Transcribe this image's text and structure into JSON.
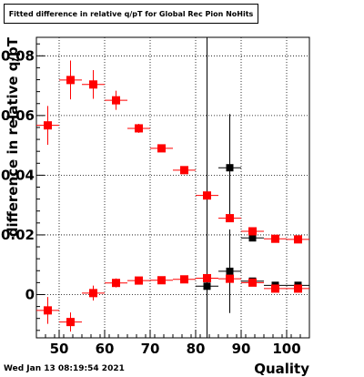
{
  "title": "Fitted difference in relative q/pT for Global Rec Pion NoHits",
  "timestamp": "Wed Jan 13 08:19:54 2021",
  "chart_data": {
    "type": "scatter",
    "title": "Fitted difference in relative q/pT for Global Rec Pion NoHits",
    "xlabel": "Quality",
    "ylabel": "difference in relative q/pT",
    "xlim": [
      45,
      105
    ],
    "ylim": [
      -0.0145,
      0.0862
    ],
    "x_ticks": [
      "50",
      "60",
      "70",
      "80",
      "90",
      "100"
    ],
    "y_ticks": [
      "0",
      "0.02",
      "0.04",
      "0.06",
      "0.08"
    ],
    "grid": true,
    "series": [
      {
        "color": "#000000",
        "points": [
          {
            "x": 82.5,
            "y": 0.0028,
            "xerr": 2.5,
            "yerr": 0.25
          },
          {
            "x": 87.5,
            "y": 0.0425,
            "xerr": 2.5,
            "yerr": 0.018
          },
          {
            "x": 87.5,
            "y": 0.0078,
            "xerr": 2.5,
            "yerr": 0.014
          },
          {
            "x": 92.5,
            "y": 0.019,
            "xerr": 2.5,
            "yerr": 0.0008
          },
          {
            "x": 92.5,
            "y": 0.0045,
            "xerr": 2.5,
            "yerr": 0.001
          },
          {
            "x": 97.5,
            "y": 0.0031,
            "xerr": 2.5,
            "yerr": 0.0008
          },
          {
            "x": 102.5,
            "y": 0.0031,
            "xerr": 2.5,
            "yerr": 0.0006
          }
        ]
      },
      {
        "color": "#ff0000",
        "points": [
          {
            "x": 47.5,
            "y": 0.0567,
            "xerr": 2.5,
            "yerr": 0.0065
          },
          {
            "x": 52.5,
            "y": 0.0719,
            "xerr": 2.5,
            "yerr": 0.0065
          },
          {
            "x": 57.5,
            "y": 0.0704,
            "xerr": 2.5,
            "yerr": 0.0048
          },
          {
            "x": 62.5,
            "y": 0.0651,
            "xerr": 2.5,
            "yerr": 0.0032
          },
          {
            "x": 67.5,
            "y": 0.0557,
            "xerr": 2.5,
            "yerr": 0.0015
          },
          {
            "x": 72.5,
            "y": 0.049,
            "xerr": 2.5,
            "yerr": 0.0008
          },
          {
            "x": 77.5,
            "y": 0.0417,
            "xerr": 2.5,
            "yerr": 0.0008
          },
          {
            "x": 82.5,
            "y": 0.0332,
            "xerr": 2.5,
            "yerr": 0.0008
          },
          {
            "x": 87.5,
            "y": 0.0256,
            "xerr": 2.5,
            "yerr": 0.0006
          },
          {
            "x": 92.5,
            "y": 0.0212,
            "xerr": 2.5,
            "yerr": 0.0006
          },
          {
            "x": 97.5,
            "y": 0.0187,
            "xerr": 2.5,
            "yerr": 0.0006
          },
          {
            "x": 102.5,
            "y": 0.0185,
            "xerr": 2.5,
            "yerr": 0.0006
          },
          {
            "x": 47.5,
            "y": -0.0053,
            "xerr": 2.5,
            "yerr": 0.0045
          },
          {
            "x": 52.5,
            "y": -0.0092,
            "xerr": 2.5,
            "yerr": 0.0032
          },
          {
            "x": 57.5,
            "y": 0.0005,
            "xerr": 2.5,
            "yerr": 0.0025
          },
          {
            "x": 62.5,
            "y": 0.0039,
            "xerr": 2.5,
            "yerr": 0.0015
          },
          {
            "x": 67.5,
            "y": 0.0047,
            "xerr": 2.5,
            "yerr": 0.001
          },
          {
            "x": 72.5,
            "y": 0.0048,
            "xerr": 2.5,
            "yerr": 0.0006
          },
          {
            "x": 77.5,
            "y": 0.0051,
            "xerr": 2.5,
            "yerr": 0.0006
          },
          {
            "x": 82.5,
            "y": 0.0055,
            "xerr": 2.5,
            "yerr": 0.0006
          },
          {
            "x": 87.5,
            "y": 0.0053,
            "xerr": 2.5,
            "yerr": 0.001
          },
          {
            "x": 92.5,
            "y": 0.004,
            "xerr": 2.5,
            "yerr": 0.0008
          },
          {
            "x": 97.5,
            "y": 0.002,
            "xerr": 2.5,
            "yerr": 0.0006
          },
          {
            "x": 102.5,
            "y": 0.002,
            "xerr": 2.5,
            "yerr": 0.0006
          }
        ]
      }
    ]
  }
}
